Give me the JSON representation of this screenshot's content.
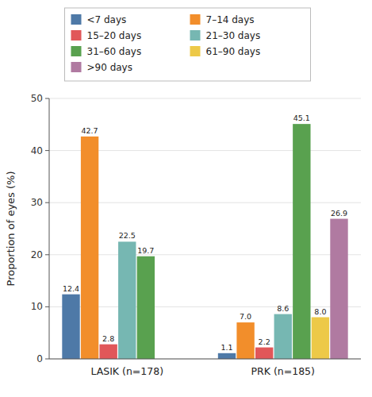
{
  "chart_data": {
    "type": "bar",
    "categories": [
      "LASIK (n=178)",
      "PRK (n=185)"
    ],
    "series": [
      {
        "name": "<7 days",
        "values": [
          12.4,
          1.1
        ],
        "value_labels": [
          "12.4",
          "1.1"
        ]
      },
      {
        "name": "7–14 days",
        "values": [
          42.7,
          7.0
        ],
        "value_labels": [
          "42.7",
          "7.0"
        ]
      },
      {
        "name": "15–20 days",
        "values": [
          2.8,
          2.2
        ],
        "value_labels": [
          "2.8",
          "2.2"
        ]
      },
      {
        "name": "21–30 days",
        "values": [
          22.5,
          8.6
        ],
        "value_labels": [
          "22.5",
          "8.6"
        ]
      },
      {
        "name": "31–60 days",
        "values": [
          19.7,
          45.1
        ],
        "value_labels": [
          "19.7",
          "45.1"
        ]
      },
      {
        "name": "61–90 days",
        "values": [
          0.0,
          8.0
        ],
        "value_labels": [
          null,
          "8.0"
        ]
      },
      {
        "name": ">90 days",
        "values": [
          0.0,
          26.9
        ],
        "value_labels": [
          null,
          "26.9"
        ]
      }
    ],
    "ylabel": "Proportion of eyes (%)",
    "ylim": [
      0,
      50
    ],
    "yticks": [
      0,
      10,
      20,
      30,
      40,
      50
    ],
    "grid": true,
    "data_labels": true,
    "legend": "top"
  }
}
